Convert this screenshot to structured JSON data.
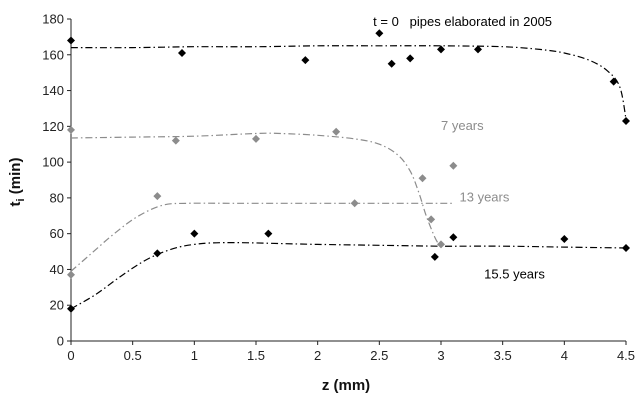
{
  "chart_data": {
    "type": "scatter",
    "title": "",
    "xlabel": "z (mm)",
    "ylabel_main": "t",
    "ylabel_sub": "i",
    "ylabel_unit": " (min)",
    "xlim": [
      0,
      4.5
    ],
    "ylim": [
      0,
      180
    ],
    "x_ticks": [
      0,
      0.5,
      1,
      1.5,
      2,
      2.5,
      3,
      3.5,
      4,
      4.5
    ],
    "x_tick_labels": [
      "0",
      "0.5",
      "1",
      "1.5",
      "2",
      "2.5",
      "3",
      "3.5",
      "4",
      "4.5"
    ],
    "y_ticks": [
      0,
      20,
      40,
      60,
      80,
      100,
      120,
      140,
      160,
      180
    ],
    "y_tick_labels": [
      "0",
      "20",
      "40",
      "60",
      "80",
      "100",
      "120",
      "140",
      "160",
      "180"
    ],
    "grid": false,
    "legend": "none",
    "series": [
      {
        "name": "t = 0   pipes elaborated in 2005",
        "color": "#000000",
        "marker": "diamond",
        "x": [
          0,
          0.9,
          1.9,
          2.5,
          2.6,
          2.75,
          3.0,
          3.3,
          4.4,
          4.5
        ],
        "y": [
          168,
          161,
          157,
          172,
          155,
          158,
          163,
          163,
          145,
          123
        ],
        "trend_x": [
          0,
          0.5,
          1,
          1.5,
          2,
          2.5,
          3,
          3.5,
          3.8,
          4.0,
          4.2,
          4.35,
          4.45,
          4.5
        ],
        "trend_y": [
          164,
          164,
          164.5,
          164.5,
          165,
          165,
          165,
          164.5,
          163,
          161,
          157,
          151,
          142,
          124
        ]
      },
      {
        "name": "7 years",
        "color": "#8c8c8c",
        "marker": "diamond",
        "x": [
          0,
          0.85,
          1.5,
          2.15,
          2.85,
          2.92,
          3.1
        ],
        "y": [
          118,
          112,
          113,
          117,
          91,
          68,
          98
        ],
        "trend_x": [
          0,
          0.5,
          1,
          1.5,
          1.7,
          2,
          2.3,
          2.5,
          2.65,
          2.75,
          2.82,
          2.88,
          2.95,
          3.0
        ],
        "trend_y": [
          113.5,
          114,
          114.5,
          116,
          116,
          115,
          113,
          110,
          104,
          95,
          83,
          70,
          58,
          52
        ]
      },
      {
        "name": "13 years",
        "color": "#8c8c8c",
        "marker": "diamond",
        "x": [
          0,
          0.7,
          2.3,
          3.0
        ],
        "y": [
          37,
          81,
          77,
          54
        ],
        "trend_x": [
          0,
          0.15,
          0.35,
          0.55,
          0.75,
          0.95,
          1.3,
          2.0,
          2.5,
          3.0,
          3.1
        ],
        "trend_y": [
          39,
          48,
          60,
          70,
          76,
          77,
          77,
          77,
          77,
          77,
          77
        ]
      },
      {
        "name": "15.5 years",
        "color": "#000000",
        "marker": "diamond",
        "x": [
          0,
          0.7,
          1.0,
          1.6,
          2.95,
          3.1,
          4.0,
          4.5
        ],
        "y": [
          18,
          49,
          60,
          60,
          47,
          58,
          57,
          52
        ],
        "trend_x": [
          0,
          0.2,
          0.4,
          0.6,
          0.8,
          1.0,
          1.3,
          2.0,
          2.5,
          3.0,
          3.5,
          4.0,
          4.5
        ],
        "trend_y": [
          18,
          26,
          36,
          45,
          51,
          54,
          55,
          54,
          53.5,
          53,
          53,
          52.5,
          52
        ]
      }
    ],
    "annotations": [
      {
        "text": "t = 0   pipes elaborated in 2005",
        "x": 2.45,
        "y": 176,
        "color": "#000000"
      },
      {
        "text": "7 years",
        "x": 3.0,
        "y": 118,
        "color": "#8c8c8c"
      },
      {
        "text": "13 years",
        "x": 3.15,
        "y": 78,
        "color": "#8c8c8c"
      },
      {
        "text": "15.5 years",
        "x": 3.35,
        "y": 35,
        "color": "#000000"
      }
    ]
  }
}
